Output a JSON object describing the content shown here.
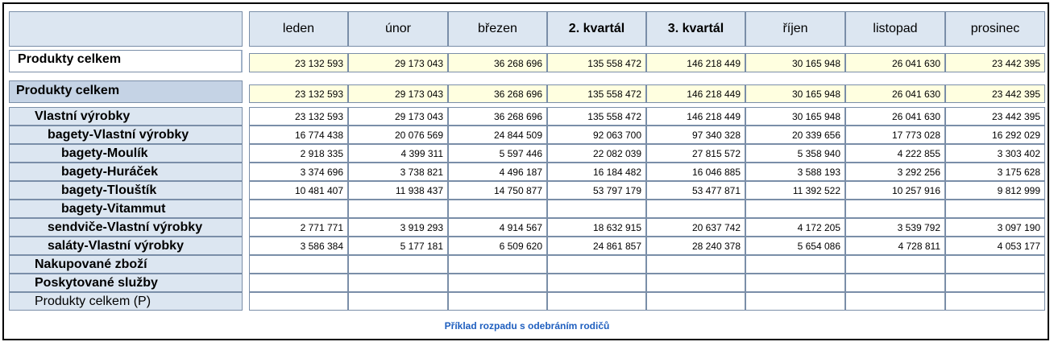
{
  "columns": [
    "leden",
    "únor",
    "březen",
    "2. kvartál",
    "3. kvartál",
    "říjen",
    "listopad",
    "prosinec"
  ],
  "bold_columns": [
    3,
    4
  ],
  "summary": {
    "label": "Produkty celkem",
    "values": [
      "23 132 593",
      "29 173 043",
      "36 268 696",
      "135 558 472",
      "146 218 449",
      "30 165 948",
      "26 041 630",
      "23 442 395"
    ]
  },
  "rows": [
    {
      "label": "Produkty celkem",
      "level": 0,
      "bold": true,
      "highlight": true,
      "values": [
        "23 132 593",
        "29 173 043",
        "36 268 696",
        "135 558 472",
        "146 218 449",
        "30 165 948",
        "26 041 630",
        "23 442 395"
      ]
    },
    {
      "label": "Vlastní výrobky",
      "level": 1,
      "bold": true,
      "values": [
        "23 132 593",
        "29 173 043",
        "36 268 696",
        "135 558 472",
        "146 218 449",
        "30 165 948",
        "26 041 630",
        "23 442 395"
      ]
    },
    {
      "label": "bagety-Vlastní výrobky",
      "level": 2,
      "bold": true,
      "values": [
        "16 774 438",
        "20 076 569",
        "24 844 509",
        "92 063 700",
        "97 340 328",
        "20 339 656",
        "17 773 028",
        "16 292 029"
      ]
    },
    {
      "label": "bagety-Moulík",
      "level": 3,
      "bold": true,
      "values": [
        "2 918 335",
        "4 399 311",
        "5 597 446",
        "22 082 039",
        "27 815 572",
        "5 358 940",
        "4 222 855",
        "3 303 402"
      ]
    },
    {
      "label": "bagety-Huráček",
      "level": 3,
      "bold": true,
      "values": [
        "3 374 696",
        "3 738 821",
        "4 496 187",
        "16 184 482",
        "16 046 885",
        "3 588 193",
        "3 292 256",
        "3 175 628"
      ]
    },
    {
      "label": "bagety-Tlouštík",
      "level": 3,
      "bold": true,
      "values": [
        "10 481 407",
        "11 938 437",
        "14 750 877",
        "53 797 179",
        "53 477 871",
        "11 392 522",
        "10 257 916",
        "9 812 999"
      ]
    },
    {
      "label": "bagety-Vitammut",
      "level": 3,
      "bold": true,
      "values": [
        "",
        "",
        "",
        "",
        "",
        "",
        "",
        ""
      ]
    },
    {
      "label": "sendviče-Vlastní výrobky",
      "level": 2,
      "bold": true,
      "values": [
        "2 771 771",
        "3 919 293",
        "4 914 567",
        "18 632 915",
        "20 637 742",
        "4 172 205",
        "3 539 792",
        "3 097 190"
      ]
    },
    {
      "label": "saláty-Vlastní výrobky",
      "level": 2,
      "bold": true,
      "values": [
        "3 586 384",
        "5 177 181",
        "6 509 620",
        "24 861 857",
        "28 240 378",
        "5 654 086",
        "4 728 811",
        "4 053 177"
      ]
    },
    {
      "label": "Nakupované zboží",
      "level": 1,
      "bold": true,
      "values": [
        "",
        "",
        "",
        "",
        "",
        "",
        "",
        ""
      ]
    },
    {
      "label": "Poskytované služby",
      "level": 1,
      "bold": true,
      "values": [
        "",
        "",
        "",
        "",
        "",
        "",
        "",
        ""
      ]
    },
    {
      "label": "Produkty celkem (P)",
      "level": 1,
      "bold": false,
      "values": [
        "",
        "",
        "",
        "",
        "",
        "",
        "",
        ""
      ]
    }
  ],
  "caption": "Příklad rozpadu s odebráním rodičů"
}
